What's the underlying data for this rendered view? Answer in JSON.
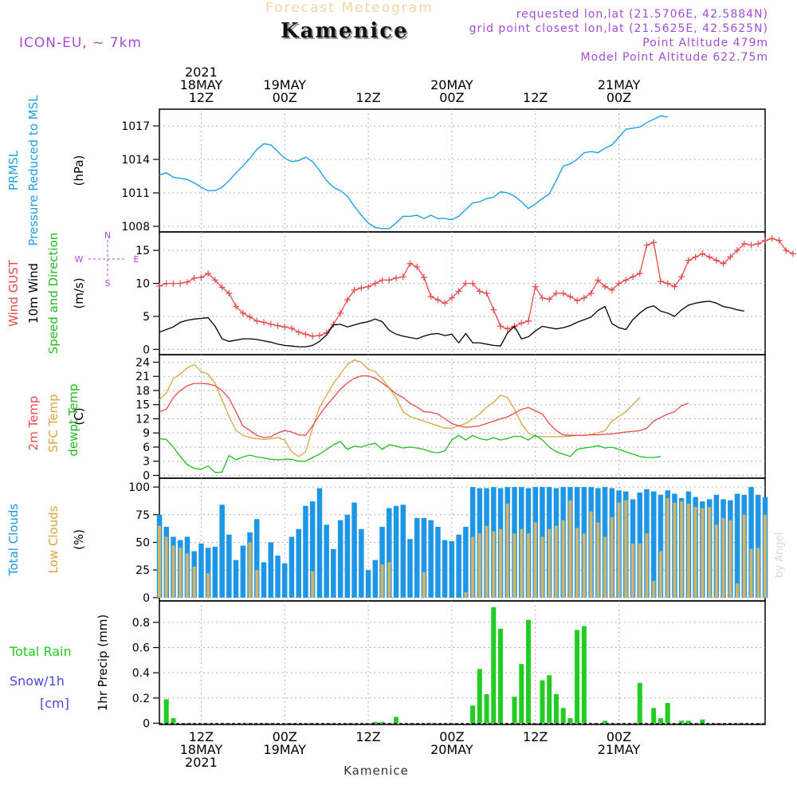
{
  "header": {
    "faint_title": "Forecast Meteogram",
    "location": "Kamenice",
    "model": "ICON-EU, ~ 7km",
    "requested": "requested lon,lat (21.5706E, 42.5884N)",
    "grid_point": "grid point closest lon,lat (21.5625E, 42.5625N)",
    "point_altitude": "Point Altitude 479m",
    "model_altitude": "Model Point Altitude 622.75m",
    "footer": "Kamenice",
    "credit": "by Angel"
  },
  "colors": {
    "pressure": "#1ea0e6",
    "gust": "#e84a4a",
    "wind": "#000000",
    "temp": "#e84a4a",
    "sfc": "#d9a441",
    "dewpt": "#22bb22",
    "total_cloud": "#1e96e6",
    "low_cloud": "#cfb46a",
    "rain": "#22cc22",
    "snow": "#4848dd",
    "violet": "#a54cd6"
  },
  "chart_data": [
    {
      "type": "line",
      "panel": "pressure",
      "title": "PRMSL Pressure Reduced to MSL",
      "title_lines": [
        "PRMSL",
        "Pressure Reduced to MSL"
      ],
      "ylabel": "(hPa)",
      "ylim": [
        1007.5,
        1018.5
      ],
      "yticks": [
        1008,
        1011,
        1014,
        1017
      ],
      "x_start": 6,
      "x_step": 1,
      "series": [
        {
          "values": [
            1012.6,
            1012.8,
            1012.4,
            1012.3,
            1012.2,
            1011.9,
            1011.5,
            1011.2,
            1011.2,
            1011.5,
            1012.1,
            1012.8,
            1013.4,
            1014.1,
            1014.9,
            1015.4,
            1015.3,
            1014.7,
            1014.1,
            1013.8,
            1013.9,
            1014.2,
            1013.8,
            1013.0,
            1012.1,
            1011.5,
            1011.2,
            1010.7,
            1009.8,
            1009.0,
            1008.3,
            1007.9,
            1007.8,
            1007.8,
            1008.3,
            1008.9,
            1008.9,
            1009.0,
            1008.7,
            1009.0,
            1008.7,
            1008.7,
            1008.6,
            1008.9,
            1009.5,
            1010.1,
            1010.2,
            1010.5,
            1010.6,
            1011.1,
            1011.0,
            1010.7,
            1010.2,
            1009.6,
            1010.0,
            1010.5,
            1010.9,
            1012.1,
            1013.4,
            1013.6,
            1014.0,
            1014.6,
            1014.7,
            1014.6,
            1015.0,
            1015.3,
            1016.0,
            1016.7,
            1016.8,
            1016.9,
            1017.3,
            1017.6,
            1017.9,
            1017.8
          ]
        }
      ]
    },
    {
      "type": "line",
      "panel": "wind",
      "title": "Wind GUST 10m Wind Speed and Direction",
      "title_lines": [
        "Wind GUST",
        "10m Wind",
        "Speed and Direction"
      ],
      "ylabel": "(m/s)",
      "ylim": [
        -0.8,
        17.8
      ],
      "yticks": [
        0,
        5,
        10,
        15
      ],
      "compass": [
        "N",
        "S",
        "W",
        "E"
      ],
      "x_start": 6,
      "x_step": 1,
      "series": [
        {
          "name": "Wind GUST",
          "values": [
            9.6,
            10.0,
            10.0,
            10.0,
            10.2,
            10.8,
            10.9,
            11.5,
            10.5,
            9.4,
            8.5,
            6.5,
            5.5,
            4.9,
            4.3,
            4.1,
            3.8,
            3.6,
            3.4,
            3.2,
            2.6,
            2.3,
            2.0,
            2.1,
            2.5,
            3.8,
            5.5,
            7.5,
            9.0,
            9.3,
            9.5,
            10.0,
            10.5,
            10.5,
            10.8,
            11.0,
            13.0,
            12.5,
            10.9,
            8.0,
            7.5,
            7.0,
            7.8,
            8.8,
            10.0,
            10.0,
            8.8,
            8.5,
            6.0,
            3.5,
            3.1,
            3.5,
            4.0,
            4.3,
            9.5,
            7.8,
            7.6,
            8.5,
            8.5,
            8.0,
            7.4,
            7.8,
            8.5,
            10.5,
            9.5,
            9.0,
            10.0,
            10.5,
            11.0,
            11.5,
            15.8,
            16.2,
            10.3,
            10.0,
            9.5,
            11.0,
            13.5,
            14.0,
            14.5,
            14.0,
            13.5,
            13.0,
            14.0,
            15.0,
            16.0,
            15.8,
            16.0,
            16.5,
            16.8,
            16.5,
            15.0,
            14.5
          ]
        },
        {
          "name": "10m Wind",
          "values": [
            2.6,
            3.0,
            3.4,
            4.1,
            4.4,
            4.6,
            4.7,
            4.8,
            3.5,
            1.6,
            1.2,
            1.4,
            1.6,
            1.6,
            1.5,
            1.3,
            1.1,
            0.8,
            0.6,
            0.5,
            0.4,
            0.4,
            0.6,
            1.2,
            2.2,
            3.7,
            3.8,
            3.4,
            3.7,
            4.0,
            4.2,
            4.6,
            4.2,
            2.9,
            2.3,
            2.0,
            1.8,
            1.6,
            2.0,
            2.3,
            2.4,
            2.1,
            2.3,
            1.0,
            2.4,
            1.0,
            1.0,
            0.8,
            0.6,
            0.5,
            2.5,
            3.5,
            1.6,
            1.9,
            2.8,
            3.5,
            3.3,
            3.1,
            3.3,
            3.6,
            4.1,
            4.5,
            4.9,
            5.9,
            6.5,
            3.9,
            3.3,
            3.0,
            4.5,
            5.5,
            6.3,
            6.6,
            5.8,
            5.5,
            5.0,
            6.0,
            6.7,
            7.0,
            7.2,
            7.3,
            7.0,
            6.5,
            6.3,
            6.0,
            5.8
          ]
        }
      ]
    },
    {
      "type": "line",
      "panel": "temperature",
      "title": "2m Temp SFC Temp dewpt Temp",
      "title_lines": [
        "2m Temp",
        "SFC Temp",
        "dewpt Temp"
      ],
      "ylabel": "(C)",
      "ylim": [
        -0.6,
        25.6
      ],
      "yticks": [
        0,
        3,
        6,
        9,
        12,
        15,
        18,
        21,
        24
      ],
      "x_start": 6,
      "x_step": 1,
      "series": [
        {
          "name": "2m Temp",
          "values": [
            13.5,
            14.0,
            16.5,
            18.0,
            19.0,
            19.5,
            19.5,
            19.4,
            19.0,
            18.0,
            16.3,
            13.5,
            10.5,
            9.5,
            8.5,
            8.0,
            8.2,
            9.0,
            9.5,
            9.2,
            8.6,
            8.5,
            10.5,
            12.8,
            14.8,
            16.5,
            18.3,
            19.6,
            20.6,
            21.1,
            21.1,
            20.6,
            19.6,
            18.5,
            17.3,
            16.5,
            15.3,
            14.5,
            13.5,
            13.4,
            13.0,
            12.0,
            11.0,
            10.5,
            10.2,
            10.3,
            10.5,
            11.0,
            11.5,
            12.0,
            12.4,
            13.2,
            14.0,
            14.4,
            13.7,
            13.0,
            11.0,
            9.5,
            8.6,
            8.5,
            8.5,
            8.5,
            8.6,
            8.6,
            8.7,
            8.8,
            9.0,
            9.2,
            9.3,
            9.5,
            10.0,
            11.5,
            12.3,
            13.0,
            13.5,
            14.8,
            15.3
          ]
        },
        {
          "name": "SFC Temp",
          "values": [
            16.0,
            17.5,
            20.5,
            21.5,
            22.8,
            23.5,
            22.0,
            21.5,
            19.5,
            16.0,
            12.5,
            9.5,
            8.5,
            8.0,
            7.8,
            7.6,
            7.8,
            8.0,
            7.5,
            5.0,
            4.0,
            5.0,
            10.0,
            14.5,
            17.0,
            19.5,
            21.5,
            23.5,
            24.5,
            24.0,
            22.5,
            22.0,
            20.5,
            18.5,
            16.5,
            13.5,
            12.5,
            12.0,
            11.5,
            11.0,
            10.5,
            10.0,
            10.0,
            10.5,
            11.0,
            12.0,
            13.0,
            14.5,
            15.5,
            17.0,
            16.5,
            14.0,
            11.0,
            9.0,
            8.2,
            8.2,
            8.2,
            8.2,
            8.2,
            8.3,
            8.5,
            8.5,
            8.7,
            9.0,
            9.5,
            11.5,
            12.5,
            13.5,
            15.0,
            16.5
          ]
        },
        {
          "name": "dewpt Temp",
          "values": [
            7.8,
            7.6,
            6.0,
            4.0,
            2.3,
            1.5,
            1.3,
            2.0,
            0.6,
            0.7,
            4.2,
            3.3,
            3.9,
            4.3,
            3.9,
            3.7,
            3.4,
            3.3,
            3.4,
            3.4,
            3.0,
            3.0,
            3.8,
            4.5,
            5.5,
            6.5,
            7.2,
            5.5,
            6.2,
            6.0,
            6.5,
            6.8,
            5.5,
            6.5,
            6.2,
            5.8,
            6.0,
            5.8,
            5.5,
            5.0,
            4.8,
            5.2,
            7.5,
            8.5,
            7.5,
            8.5,
            7.8,
            7.5,
            8.0,
            7.5,
            7.8,
            8.3,
            8.2,
            7.5,
            8.5,
            7.5,
            6.0,
            5.0,
            4.5,
            4.0,
            5.5,
            5.8,
            6.0,
            6.3,
            5.8,
            6.0,
            5.5,
            5.0,
            4.5,
            4.0,
            3.8,
            3.8,
            4.0
          ]
        }
      ]
    },
    {
      "type": "bar",
      "panel": "clouds",
      "title": "Total Clouds Low Clouds",
      "title_lines": [
        "Total Clouds",
        "Low Clouds"
      ],
      "ylabel": "(%)",
      "ylim": [
        -3,
        108
      ],
      "yticks": [
        0,
        25,
        50,
        75,
        100
      ],
      "x_start": 6,
      "x_step": 1,
      "series": [
        {
          "name": "Total Clouds",
          "values": [
            75,
            64,
            55,
            52,
            55,
            42,
            49,
            45,
            46,
            84,
            57,
            34,
            47,
            59,
            71,
            32,
            50,
            38,
            31,
            55,
            62,
            83,
            87,
            99,
            66,
            44,
            70,
            75,
            86,
            62,
            25,
            34,
            64,
            81,
            83,
            84,
            53,
            72,
            72,
            70,
            64,
            52,
            51,
            57,
            64,
            100,
            99,
            99,
            100,
            99,
            100,
            100,
            100,
            99,
            100,
            100,
            100,
            99,
            100,
            100,
            100,
            100,
            100,
            99,
            100,
            99,
            97,
            96,
            89,
            95,
            98,
            96,
            93,
            97,
            94,
            90,
            96,
            91,
            87,
            89,
            93,
            89,
            88,
            94,
            93,
            100,
            93,
            91
          ]
        },
        {
          "name": "Low Clouds",
          "values": [
            65,
            55,
            47,
            45,
            40,
            28,
            0,
            22,
            0,
            0,
            0,
            0,
            0,
            50,
            25,
            0,
            0,
            0,
            0,
            0,
            0,
            0,
            24,
            0,
            0,
            0,
            0,
            0,
            0,
            0,
            0,
            0,
            30,
            32,
            0,
            0,
            0,
            0,
            23,
            0,
            0,
            0,
            0,
            0,
            5,
            55,
            58,
            65,
            60,
            62,
            85,
            58,
            62,
            58,
            68,
            55,
            62,
            65,
            70,
            88,
            63,
            58,
            78,
            68,
            55,
            73,
            86,
            88,
            49,
            49,
            58,
            15,
            42,
            90,
            86,
            87,
            85,
            82,
            81,
            82,
            66,
            72,
            70,
            13,
            75,
            44,
            45,
            75
          ]
        }
      ]
    },
    {
      "type": "bar",
      "panel": "precip",
      "title": "Total Rain Snow/1h [cm]",
      "title_lines": [
        "Total  Rain",
        "Snow/1h",
        "[cm]"
      ],
      "ylabel": "1hr Precip (mm)",
      "ylim": [
        -0.01,
        0.97
      ],
      "yticks": [
        0,
        0.2,
        0.4,
        0.6,
        0.8
      ],
      "ytick_labels": [
        "0",
        "0.2",
        "0.4",
        "0.6",
        "0.8"
      ],
      "x_start": 6,
      "x_step": 1,
      "series": [
        {
          "name": "Total Rain",
          "values": [
            0,
            0.19,
            0.04,
            0,
            0,
            0,
            0,
            0,
            0,
            0,
            0,
            0,
            0,
            0,
            0,
            0,
            0,
            0,
            0,
            0,
            0,
            0,
            0,
            0,
            0,
            0,
            0,
            0,
            0,
            0,
            0,
            0.01,
            0.01,
            0,
            0.05,
            0,
            0,
            0,
            0,
            0,
            0,
            0,
            0,
            0,
            0,
            0.14,
            0.43,
            0.23,
            0.92,
            0.75,
            0,
            0.21,
            0.47,
            0.82,
            0,
            0.34,
            0.38,
            0.23,
            0.12,
            0.04,
            0.74,
            0.77,
            0,
            0,
            0.02,
            0,
            0,
            0,
            0,
            0.32,
            0,
            0.12,
            0.04,
            0.16,
            0,
            0.02,
            0.02,
            0,
            0.03,
            0,
            0,
            0,
            0,
            0,
            0,
            0,
            0,
            0
          ]
        },
        {
          "name": "Snow/1h",
          "values": []
        }
      ]
    },
    {
      "type": "axis",
      "panel": "time",
      "x_start": 6,
      "x_step": 1,
      "ticks": [
        {
          "hour": 12,
          "top_lines": [
            "2021",
            "18MAY",
            "12Z"
          ],
          "bottom_lines": [
            "12Z",
            "18MAY",
            "2021"
          ]
        },
        {
          "hour": 24,
          "top_lines": [
            "19MAY",
            "00Z"
          ],
          "bottom_lines": [
            "00Z",
            "19MAY"
          ]
        },
        {
          "hour": 36,
          "top_lines": [
            "12Z"
          ],
          "bottom_lines": [
            "12Z"
          ]
        },
        {
          "hour": 48,
          "top_lines": [
            "20MAY",
            "00Z"
          ],
          "bottom_lines": [
            "00Z",
            "20MAY"
          ]
        },
        {
          "hour": 60,
          "top_lines": [
            "12Z"
          ],
          "bottom_lines": [
            "12Z"
          ]
        },
        {
          "hour": 72,
          "top_lines": [
            "21MAY",
            "00Z"
          ],
          "bottom_lines": [
            "00Z",
            "21MAY"
          ]
        }
      ]
    }
  ]
}
